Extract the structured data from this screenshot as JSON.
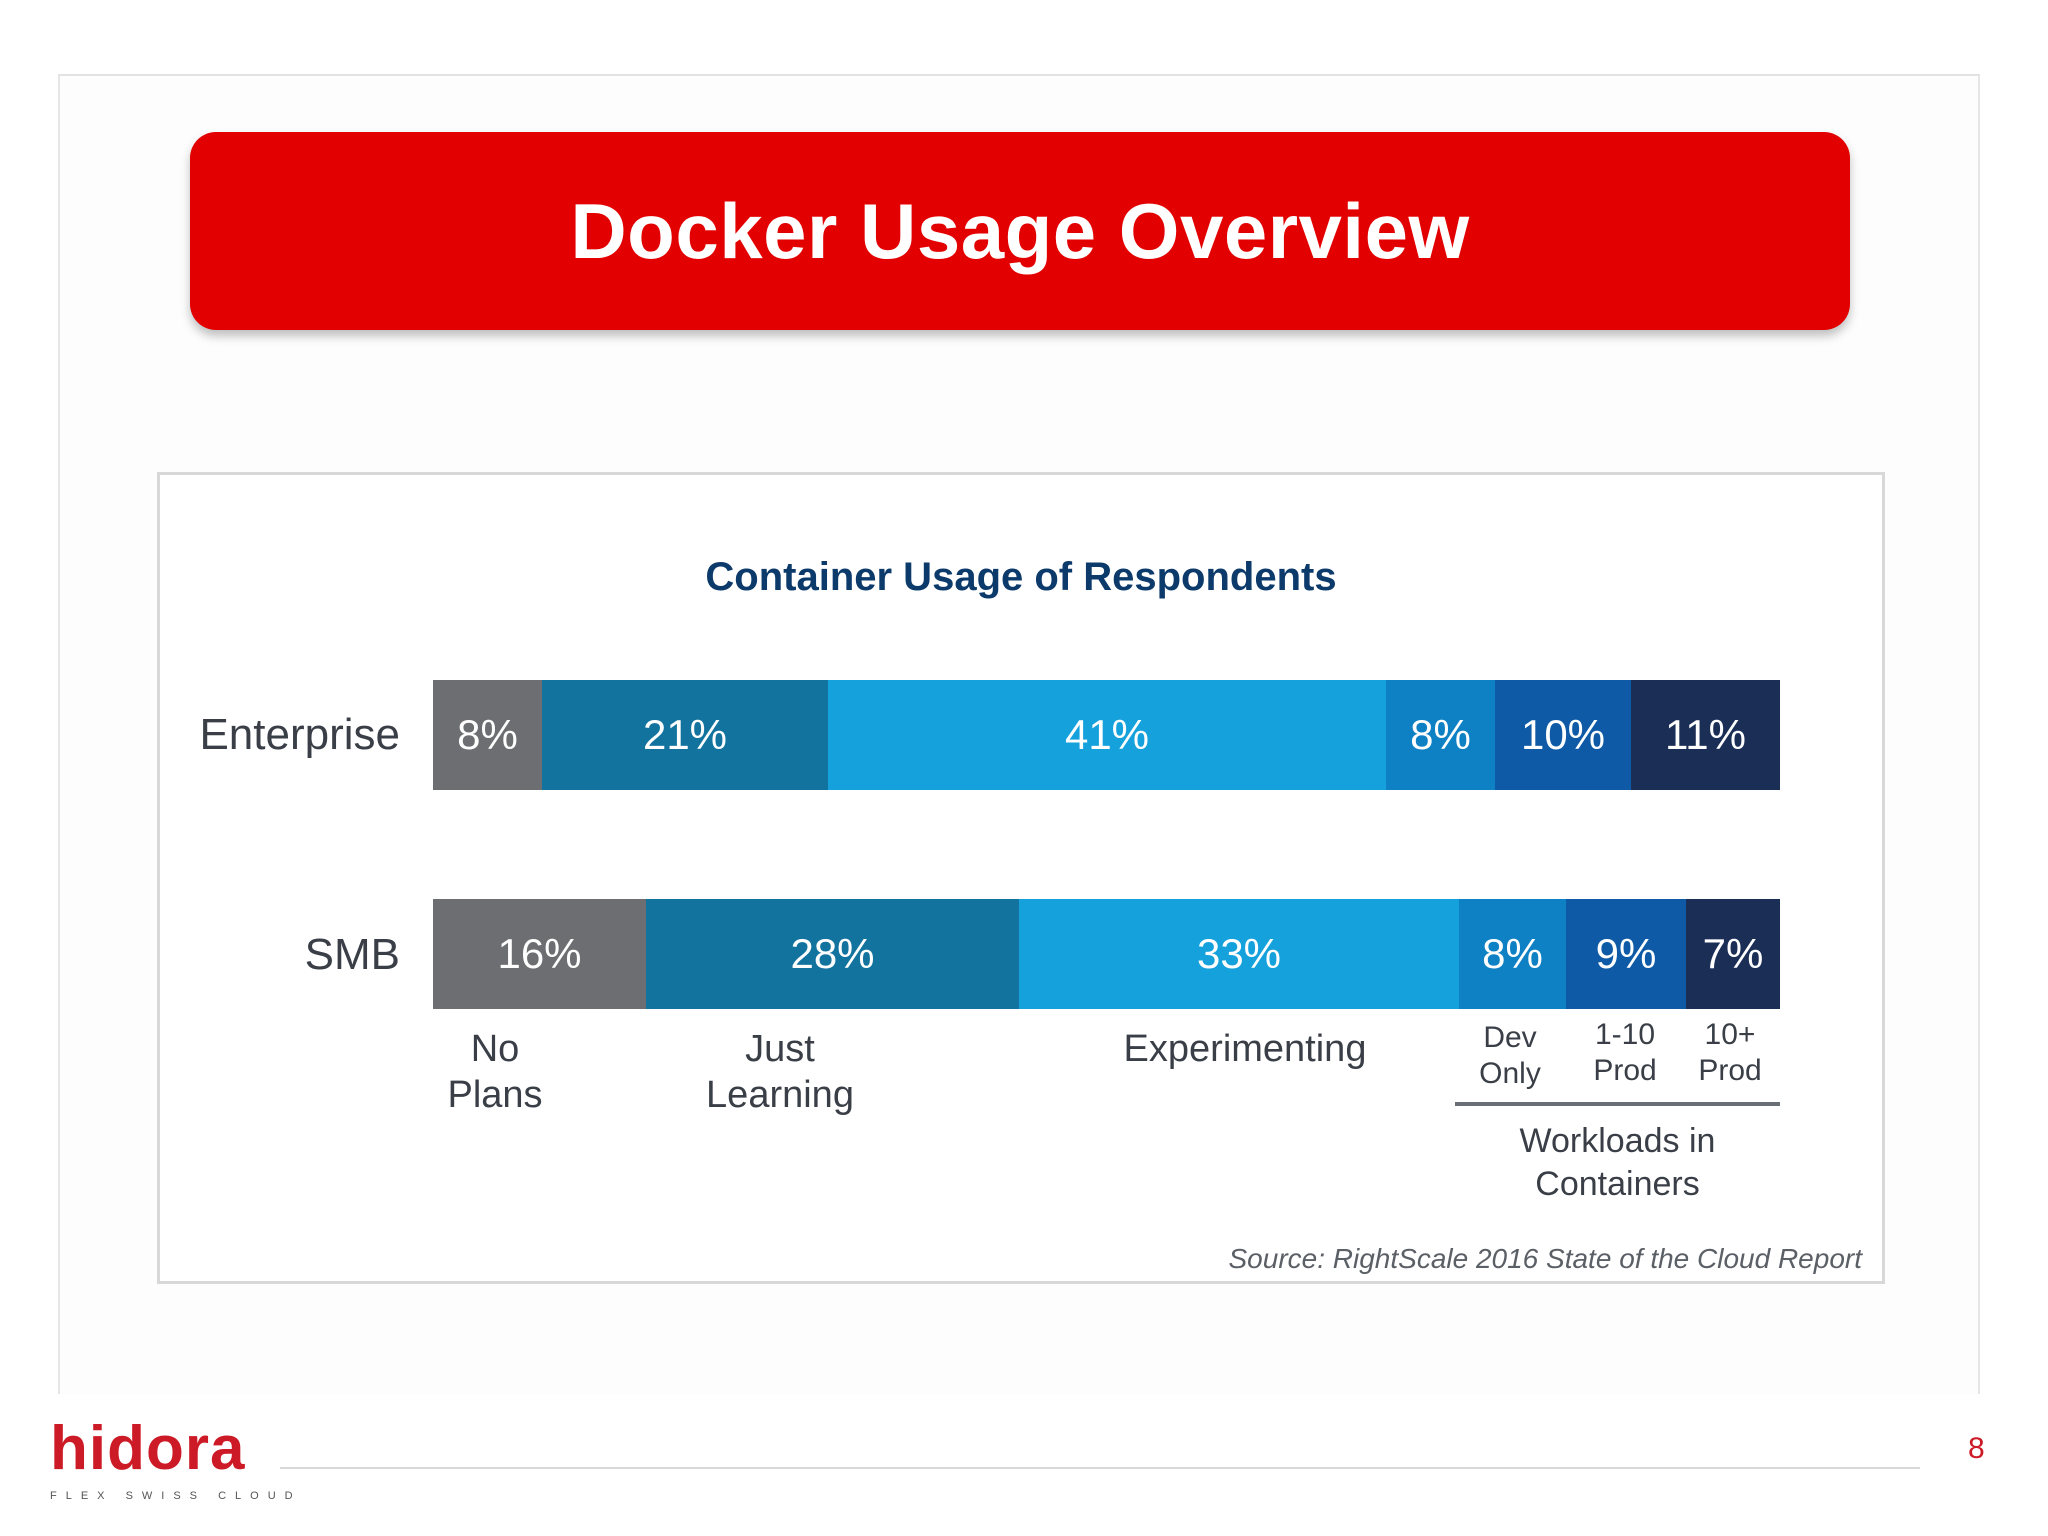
{
  "slide": {
    "title": "Docker Usage Overview",
    "page_number": "8"
  },
  "logo": {
    "name": "hidora",
    "tagline": "FLEX SWISS CLOUD"
  },
  "chart_data": {
    "type": "bar",
    "orientation": "horizontal",
    "stacked": true,
    "title": "Container Usage of Respondents",
    "categories": [
      "Enterprise",
      "SMB"
    ],
    "series": [
      {
        "name": "No Plans",
        "values": [
          8,
          16
        ],
        "color": "#6d6e71"
      },
      {
        "name": "Just Learning",
        "values": [
          21,
          28
        ],
        "color": "#12739f"
      },
      {
        "name": "Experimenting",
        "values": [
          41,
          33
        ],
        "color": "#15a1dc"
      },
      {
        "name": "Dev Only",
        "values": [
          8,
          8
        ],
        "color": "#0e80c4"
      },
      {
        "name": "1-10 Prod",
        "values": [
          10,
          9
        ],
        "color": "#0e5aa6"
      },
      {
        "name": "10+ Prod",
        "values": [
          11,
          7
        ],
        "color": "#1b2e56"
      }
    ],
    "segment_labels": [
      [
        "8%",
        "21%",
        "41%",
        "8%",
        "10%",
        "11%"
      ],
      [
        "16%",
        "28%",
        "33%",
        "8%",
        "9%",
        "7%"
      ]
    ],
    "axis_labels": {
      "no_plans": [
        "No",
        "Plans"
      ],
      "just_learning": [
        "Just",
        "Learning"
      ],
      "experimenting": "Experimenting",
      "dev_only": [
        "Dev",
        "Only"
      ],
      "prod_1_10": [
        "1-10",
        "Prod"
      ],
      "prod_10_plus": [
        "10+",
        "Prod"
      ]
    },
    "group_label": [
      "Workloads in",
      "Containers"
    ],
    "source": "Source: RightScale 2016 State of the Cloud Report",
    "legend": "none",
    "grid": false
  }
}
